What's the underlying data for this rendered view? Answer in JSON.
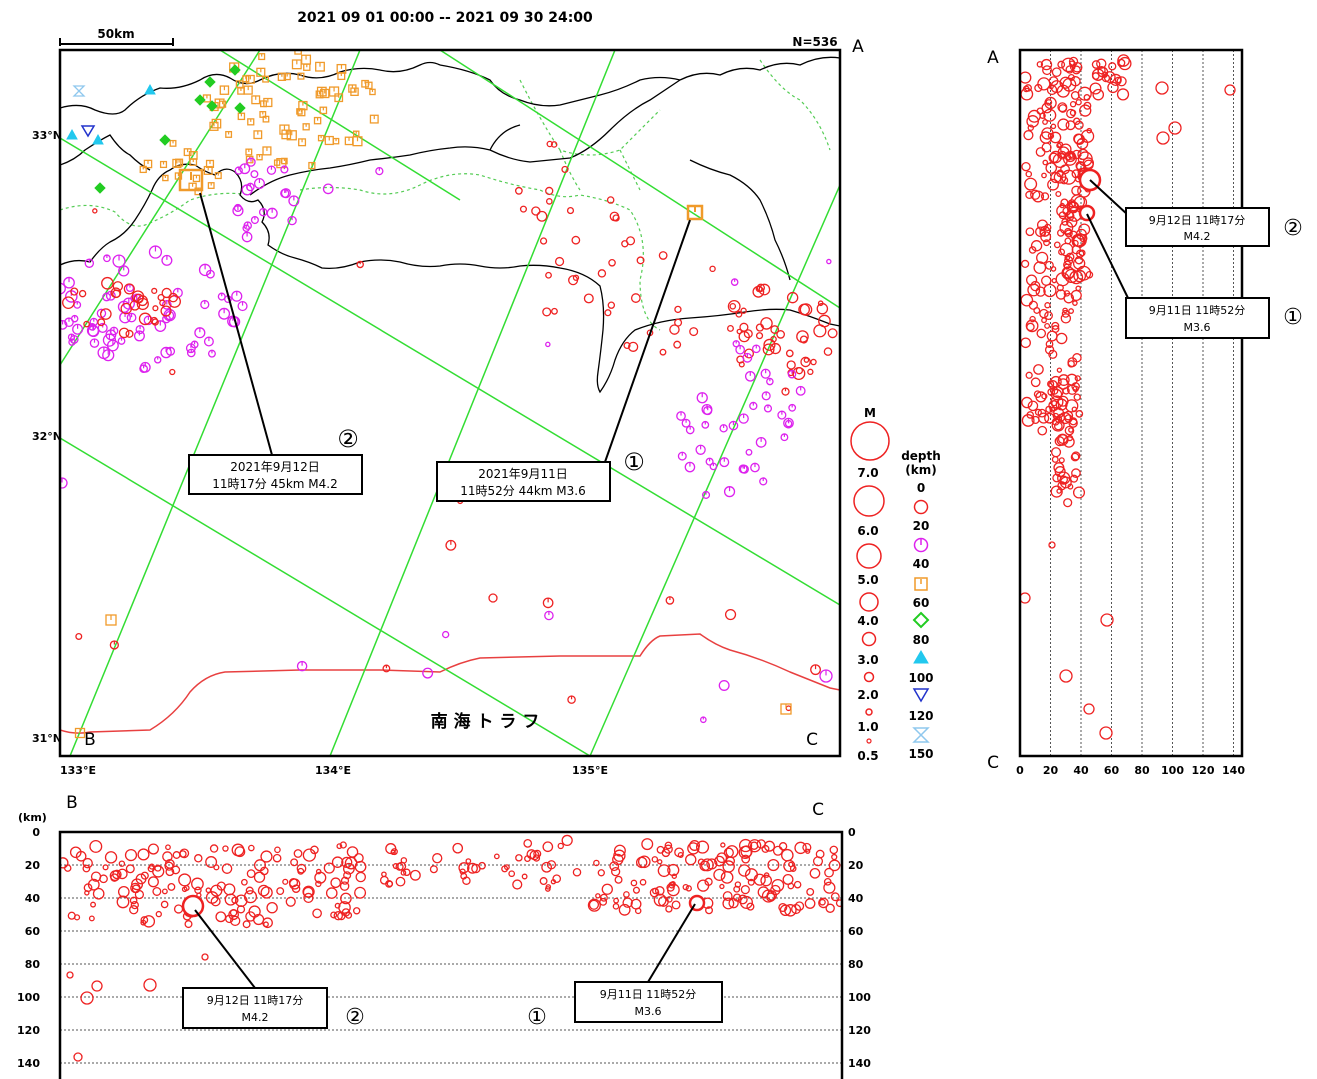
{
  "header": {
    "period": "2021 09 01 00:00 -- 2021 09 30 24:00",
    "count": "N=536",
    "scale_label": "50km"
  },
  "map": {
    "lat_labels": [
      "33°N",
      "32°N",
      "31°N"
    ],
    "lon_labels": [
      "133°E",
      "134°E",
      "135°E"
    ],
    "corner_labels": {
      "a": "A",
      "b": "B",
      "c": "C"
    },
    "trough_label": "南 海 ト ラ フ",
    "callouts": [
      {
        "circle": "②",
        "line1": "2021年9月12日",
        "line2": "11時17分 45km  M4.2"
      },
      {
        "circle": "①",
        "line1": "2021年9月11日",
        "line2": "11時52分 44km  M3.6"
      }
    ],
    "colors": {
      "frame": "#000000",
      "grid": "#33dd33",
      "coast": "#000000",
      "trough": "#e84040",
      "pref_border": "#55cc55"
    }
  },
  "legend": {
    "magnitude_title": "M",
    "magnitudes": [
      "7.0",
      "6.0",
      "5.0",
      "4.0",
      "3.0",
      "2.0",
      "1.0",
      "0.5"
    ],
    "depth_title_1": "depth",
    "depth_title_2": "(km)",
    "depths": [
      {
        "label": "0",
        "color": "#ee2222",
        "shape": "circle"
      },
      {
        "label": "20",
        "color": "#dd22ee",
        "shape": "circle-tick"
      },
      {
        "label": "40",
        "color": "#f09a2a",
        "shape": "square"
      },
      {
        "label": "60",
        "color": "#22cc22",
        "shape": "diamond"
      },
      {
        "label": "80",
        "color": "#22c8ee",
        "shape": "triangle"
      },
      {
        "label": "100",
        "color": "#2233cc",
        "shape": "triangle-down"
      },
      {
        "label": "120",
        "color": "#8fc8ee",
        "shape": "hourglass"
      },
      {
        "label": "150",
        "color": "",
        "shape": ""
      }
    ]
  },
  "section_ac": {
    "label_top": "A",
    "label_bottom": "C",
    "x_ticks": [
      "0",
      "20",
      "40",
      "60",
      "80",
      "100",
      "120",
      "140"
    ],
    "callouts": [
      {
        "line1": "9月12日 11時17分",
        "line2": "M4.2",
        "circle": "②"
      },
      {
        "line1": "9月11日 11時52分",
        "line2": "M3.6",
        "circle": "①"
      }
    ]
  },
  "section_bc": {
    "unit": "(km)",
    "label_left": "B",
    "label_right": "C",
    "y_ticks": [
      "0",
      "20",
      "40",
      "60",
      "80",
      "100",
      "120",
      "140"
    ],
    "callouts": [
      {
        "line1": "9月12日 11時17分",
        "line2": "M4.2",
        "circle": "②"
      },
      {
        "line1": "9月11日 11時52分",
        "line2": "M3.6",
        "circle": "①"
      }
    ]
  },
  "events": {
    "highlighted": [
      {
        "id": "②",
        "date": "2021年9月12日",
        "time": "11時17分",
        "depth_km": 45,
        "magnitude": 4.2
      },
      {
        "id": "①",
        "date": "2021年9月11日",
        "time": "11時52分",
        "depth_km": 44,
        "magnitude": 3.6
      }
    ]
  }
}
